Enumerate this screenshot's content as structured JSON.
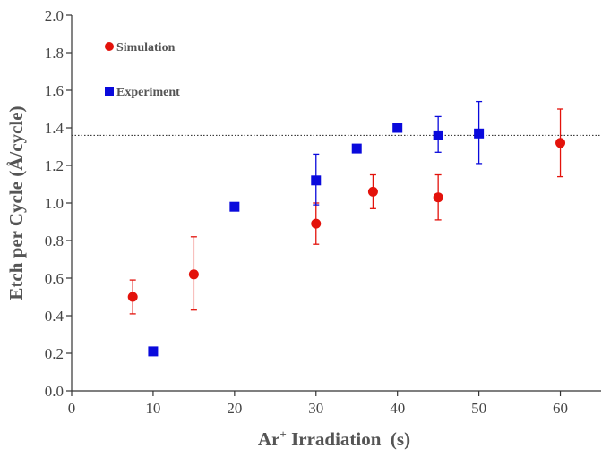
{
  "chart_data": {
    "type": "scatter",
    "xlabel": "Ar+ Irradiation  (s)",
    "xlabel_parts": {
      "base": "Ar",
      "sup": "+",
      "rest": " Irradiation  (s)"
    },
    "ylabel": "Etch per Cycle (Å/cycle)",
    "xlim": [
      0,
      65
    ],
    "ylim": [
      0.0,
      2.0
    ],
    "x_ticks": [
      0,
      10,
      20,
      30,
      40,
      50,
      60
    ],
    "x_tick_labels": [
      "0",
      "10",
      "20",
      "30",
      "40",
      "50",
      "60"
    ],
    "y_ticks": [
      0.0,
      0.2,
      0.4,
      0.6,
      0.8,
      1.0,
      1.2,
      1.4,
      1.6,
      1.8,
      2.0
    ],
    "y_tick_labels": [
      "0.0",
      "0.2",
      "0.4",
      "0.6",
      "0.8",
      "1.0",
      "1.2",
      "1.4",
      "1.6",
      "1.8",
      "2.0"
    ],
    "grid": false,
    "legend_position": "top-left",
    "reference_line": {
      "y": 1.36,
      "style": "dotted"
    },
    "series": [
      {
        "name": "Simulation",
        "marker": "circle",
        "color": "#e3120b",
        "points": [
          {
            "x": 7.5,
            "y": 0.5,
            "err_low": 0.09,
            "err_high": 0.09
          },
          {
            "x": 15,
            "y": 0.62,
            "err_low": 0.19,
            "err_high": 0.2
          },
          {
            "x": 30,
            "y": 0.89,
            "err_low": 0.11,
            "err_high": 0.11
          },
          {
            "x": 37,
            "y": 1.06,
            "err_low": 0.09,
            "err_high": 0.09
          },
          {
            "x": 45,
            "y": 1.03,
            "err_low": 0.12,
            "err_high": 0.12
          },
          {
            "x": 60,
            "y": 1.32,
            "err_low": 0.18,
            "err_high": 0.18
          }
        ]
      },
      {
        "name": "Experiment",
        "marker": "square",
        "color": "#0a0adc",
        "points": [
          {
            "x": 10,
            "y": 0.21
          },
          {
            "x": 20,
            "y": 0.98
          },
          {
            "x": 30,
            "y": 1.12,
            "err_low": 0.13,
            "err_high": 0.14
          },
          {
            "x": 35,
            "y": 1.29
          },
          {
            "x": 40,
            "y": 1.4
          },
          {
            "x": 45,
            "y": 1.36,
            "err_low": 0.09,
            "err_high": 0.1
          },
          {
            "x": 50,
            "y": 1.37,
            "err_low": 0.16,
            "err_high": 0.17
          }
        ]
      }
    ]
  }
}
